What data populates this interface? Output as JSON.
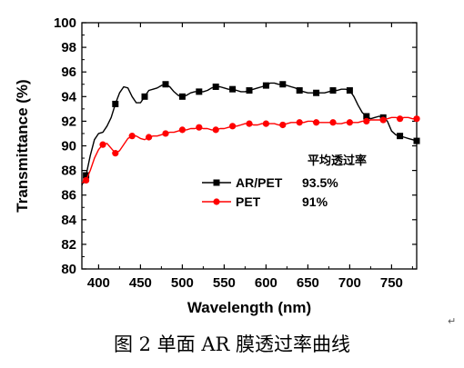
{
  "chart_data": {
    "type": "line",
    "xlabel": "Wavelength (nm)",
    "ylabel": "Transmittance (%)",
    "xlim": [
      380,
      780
    ],
    "ylim": [
      80,
      100
    ],
    "xticks": [
      400,
      450,
      500,
      550,
      600,
      650,
      700,
      750
    ],
    "yticks": [
      80,
      82,
      84,
      86,
      88,
      90,
      92,
      94,
      96,
      98,
      100
    ],
    "grid": false,
    "legend_placement": "center-right",
    "legend_header": "平均透过率",
    "series": [
      {
        "name": "AR/PET",
        "average": "93.5%",
        "color": "#000000",
        "marker": "square",
        "x": [
          380,
          385,
          390,
          395,
          400,
          405,
          410,
          415,
          420,
          425,
          430,
          435,
          440,
          445,
          450,
          455,
          460,
          465,
          470,
          475,
          480,
          485,
          490,
          495,
          500,
          505,
          510,
          515,
          520,
          525,
          530,
          535,
          540,
          545,
          550,
          555,
          560,
          565,
          570,
          575,
          580,
          585,
          590,
          595,
          600,
          605,
          610,
          615,
          620,
          625,
          630,
          635,
          640,
          645,
          650,
          655,
          660,
          665,
          670,
          675,
          680,
          685,
          690,
          695,
          700,
          705,
          710,
          715,
          720,
          725,
          730,
          735,
          740,
          745,
          750,
          755,
          760,
          765,
          770,
          775,
          780
        ],
        "y": [
          86.8,
          87.6,
          89.2,
          90.5,
          91.0,
          91.1,
          91.6,
          92.3,
          93.4,
          94.3,
          94.8,
          94.7,
          94.0,
          93.5,
          93.5,
          94.0,
          94.5,
          94.6,
          94.7,
          94.9,
          95.0,
          94.8,
          94.4,
          94.1,
          94.0,
          94.1,
          94.3,
          94.4,
          94.4,
          94.4,
          94.5,
          94.7,
          94.8,
          94.8,
          94.7,
          94.6,
          94.6,
          94.5,
          94.4,
          94.4,
          94.5,
          94.6,
          94.7,
          94.8,
          94.9,
          95.1,
          95.1,
          95.0,
          95.0,
          94.9,
          94.8,
          94.7,
          94.5,
          94.4,
          94.3,
          94.3,
          94.3,
          94.3,
          94.3,
          94.4,
          94.5,
          94.5,
          94.6,
          94.6,
          94.5,
          94.0,
          93.3,
          92.7,
          92.4,
          92.2,
          92.3,
          92.4,
          92.3,
          92.0,
          91.2,
          90.9,
          90.8,
          90.7,
          90.6,
          90.5,
          90.4
        ],
        "marker_x": [
          385,
          420,
          455,
          480,
          500,
          520,
          540,
          560,
          580,
          600,
          620,
          640,
          660,
          680,
          700,
          720,
          740,
          760,
          780
        ]
      },
      {
        "name": "PET",
        "average": "91%",
        "color": "#ff0000",
        "marker": "circle",
        "x": [
          380,
          385,
          390,
          395,
          400,
          405,
          410,
          415,
          420,
          425,
          430,
          435,
          440,
          445,
          450,
          455,
          460,
          465,
          470,
          475,
          480,
          485,
          490,
          495,
          500,
          505,
          510,
          515,
          520,
          525,
          530,
          535,
          540,
          545,
          550,
          555,
          560,
          565,
          570,
          575,
          580,
          585,
          590,
          595,
          600,
          605,
          610,
          615,
          620,
          625,
          630,
          635,
          640,
          645,
          650,
          655,
          660,
          665,
          670,
          675,
          680,
          685,
          690,
          695,
          700,
          705,
          710,
          715,
          720,
          725,
          730,
          735,
          740,
          745,
          750,
          755,
          760,
          765,
          770,
          775,
          780
        ],
        "y": [
          87.0,
          87.2,
          88.0,
          89.0,
          89.7,
          90.1,
          90.2,
          89.8,
          89.4,
          89.6,
          90.1,
          90.6,
          90.8,
          90.8,
          90.6,
          90.5,
          90.7,
          90.8,
          90.8,
          90.9,
          91.0,
          91.1,
          91.1,
          91.2,
          91.3,
          91.3,
          91.4,
          91.4,
          91.5,
          91.4,
          91.4,
          91.3,
          91.3,
          91.4,
          91.4,
          91.5,
          91.6,
          91.6,
          91.7,
          91.8,
          91.8,
          91.7,
          91.7,
          91.8,
          91.8,
          91.8,
          91.8,
          91.7,
          91.7,
          91.8,
          91.9,
          91.9,
          91.9,
          91.9,
          92.0,
          92.0,
          91.9,
          91.9,
          91.9,
          91.9,
          91.9,
          91.8,
          91.8,
          91.9,
          91.9,
          91.9,
          91.9,
          92.0,
          92.0,
          92.1,
          92.1,
          92.1,
          92.1,
          92.2,
          92.3,
          92.3,
          92.2,
          92.3,
          92.3,
          92.2,
          92.2
        ],
        "marker_x": [
          385,
          405,
          420,
          440,
          460,
          480,
          500,
          520,
          540,
          560,
          580,
          600,
          620,
          640,
          660,
          680,
          700,
          720,
          740,
          760,
          780
        ]
      }
    ]
  },
  "caption": "图 2  单面 AR 膜透过率曲线",
  "para_mark": "↵"
}
